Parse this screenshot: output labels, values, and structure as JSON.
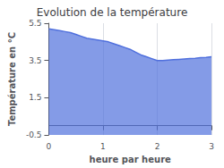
{
  "chart_data": {
    "type": "area",
    "title": "Evolution de la température",
    "xlabel": "heure par heure",
    "ylabel": "Température en °C",
    "x": [
      0,
      0.1,
      0.2,
      0.3,
      0.4,
      0.5,
      0.6,
      0.7,
      0.8,
      0.9,
      1.0,
      1.1,
      1.2,
      1.3,
      1.4,
      1.5,
      1.6,
      1.7,
      1.8,
      1.9,
      2.0,
      2.1,
      2.2,
      2.3,
      2.4,
      2.5,
      2.6,
      2.7,
      2.8,
      2.9,
      3.0
    ],
    "values": [
      5.2,
      5.15,
      5.1,
      5.05,
      5.0,
      4.9,
      4.8,
      4.7,
      4.65,
      4.6,
      4.55,
      4.5,
      4.4,
      4.3,
      4.2,
      4.1,
      3.95,
      3.8,
      3.7,
      3.6,
      3.5,
      3.5,
      3.52,
      3.54,
      3.56,
      3.58,
      3.6,
      3.62,
      3.65,
      3.67,
      3.7
    ],
    "xlim": [
      0,
      3
    ],
    "ylim": [
      -0.5,
      5.5
    ],
    "xticks": [
      0,
      1,
      2,
      3
    ],
    "yticks": [
      -0.5,
      1.5,
      3.5,
      5.5
    ],
    "grid": "x"
  }
}
